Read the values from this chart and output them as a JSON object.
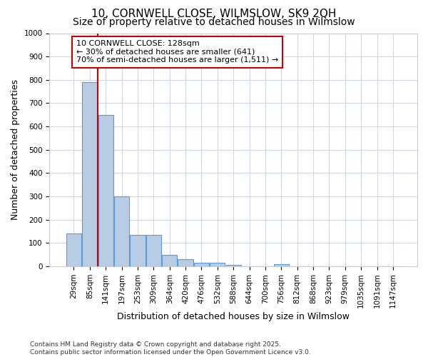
{
  "title_line1": "10, CORNWELL CLOSE, WILMSLOW, SK9 2QH",
  "title_line2": "Size of property relative to detached houses in Wilmslow",
  "xlabel": "Distribution of detached houses by size in Wilmslow",
  "ylabel": "Number of detached properties",
  "bin_labels": [
    "29sqm",
    "85sqm",
    "141sqm",
    "197sqm",
    "253sqm",
    "309sqm",
    "364sqm",
    "420sqm",
    "476sqm",
    "532sqm",
    "588sqm",
    "644sqm",
    "700sqm",
    "756sqm",
    "812sqm",
    "868sqm",
    "923sqm",
    "979sqm",
    "1035sqm",
    "1091sqm",
    "1147sqm"
  ],
  "bar_values": [
    140,
    790,
    650,
    300,
    135,
    135,
    50,
    30,
    15,
    15,
    5,
    0,
    0,
    10,
    0,
    0,
    0,
    0,
    0,
    0,
    0
  ],
  "bar_color": "#b8cce4",
  "bar_edge_color": "#5b9bd5",
  "annotation_text": "10 CORNWELL CLOSE: 128sqm\n← 30% of detached houses are smaller (641)\n70% of semi-detached houses are larger (1,511) →",
  "annotation_box_color": "#ffffff",
  "annotation_box_edge": "#cc0000",
  "vline_color": "#cc0000",
  "footer_line1": "Contains HM Land Registry data © Crown copyright and database right 2025.",
  "footer_line2": "Contains public sector information licensed under the Open Government Licence v3.0.",
  "ylim": [
    0,
    1000
  ],
  "yticks": [
    0,
    100,
    200,
    300,
    400,
    500,
    600,
    700,
    800,
    900,
    1000
  ],
  "background_color": "#ffffff",
  "grid_color": "#d0d8e8",
  "title_fontsize": 11,
  "subtitle_fontsize": 10,
  "axis_label_fontsize": 9,
  "tick_fontsize": 7.5,
  "annotation_fontsize": 8
}
